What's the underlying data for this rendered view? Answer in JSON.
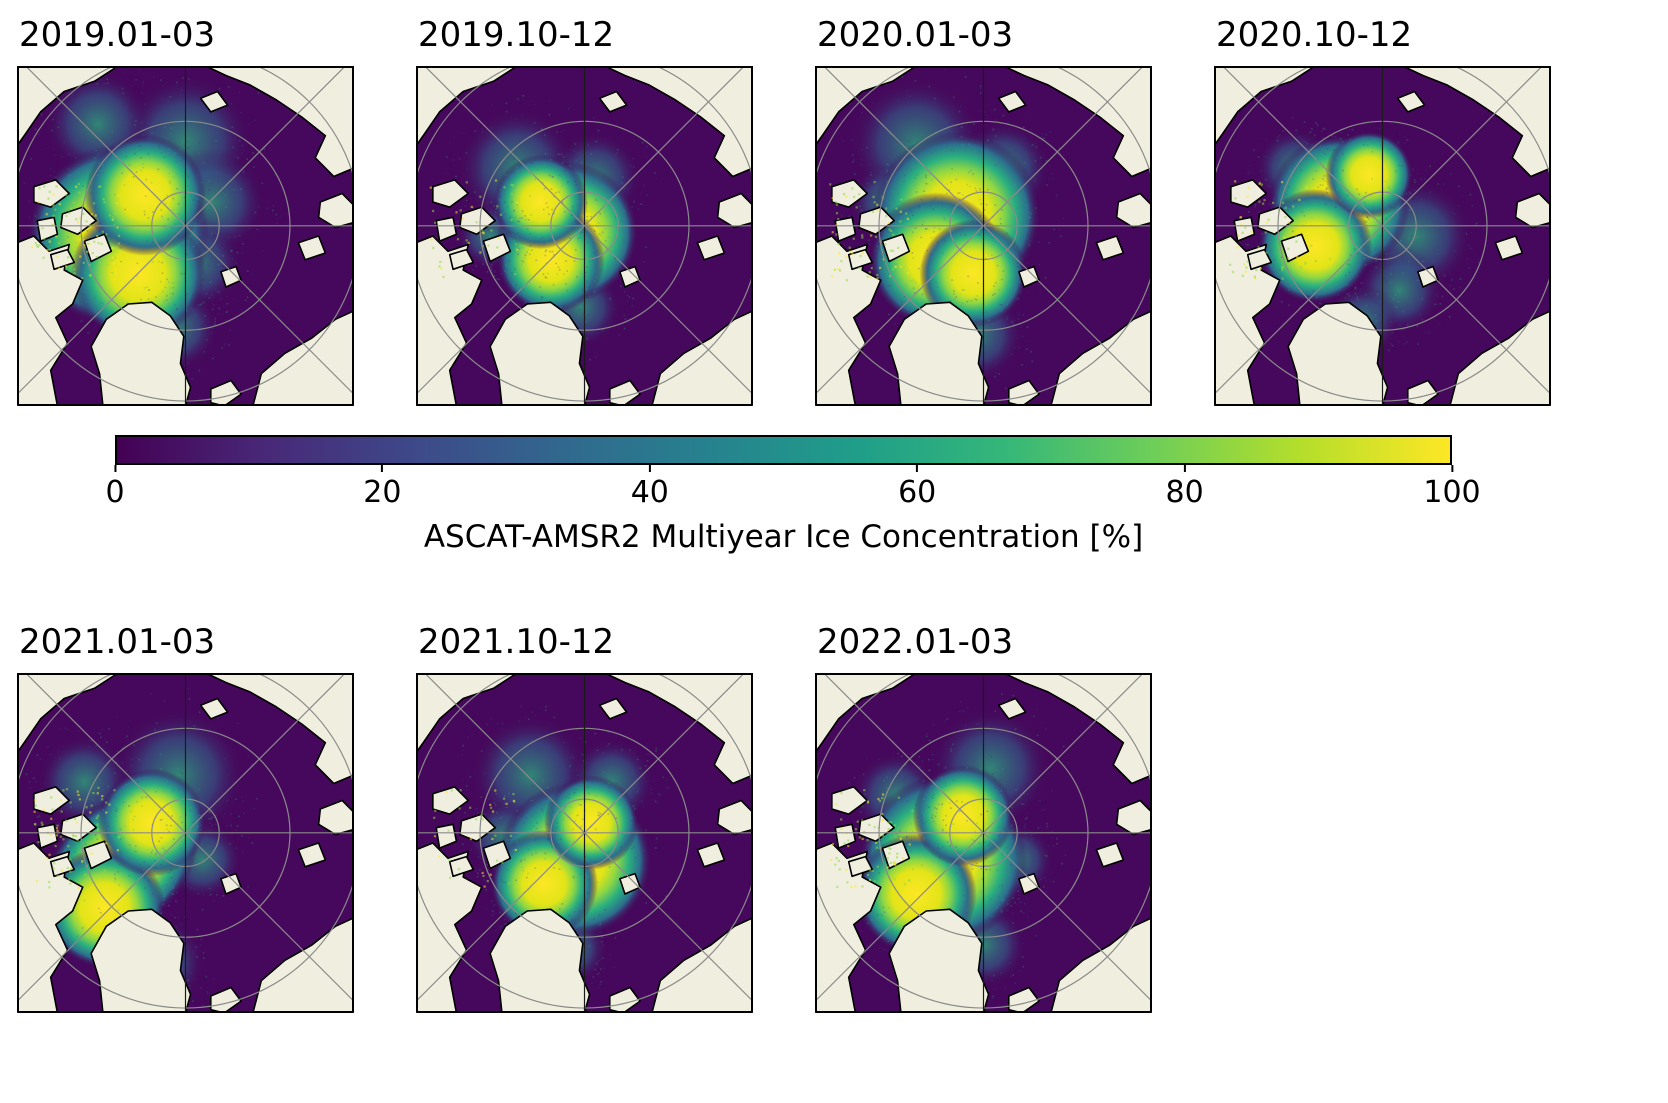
{
  "chart_data": {
    "type": "heatmap",
    "layout": "small-multiples of polar stereographic Arctic maps, 4 panels top row, 3 panels bottom row, shared horizontal colorbar between rows",
    "colorbar": {
      "label": "ASCAT-AMSR2 Multiyear Ice Concentration [%]",
      "ticks": [
        "0",
        "20",
        "40",
        "60",
        "80",
        "100"
      ],
      "range": [
        0,
        100
      ],
      "colormap": "viridis",
      "stops": [
        "#440154",
        "#482878",
        "#3e4989",
        "#31688e",
        "#26828e",
        "#1f9e89",
        "#35b779",
        "#6ece58",
        "#b5de2b",
        "#fde725"
      ]
    },
    "map_colors": {
      "ocean": "#46085c",
      "land": "#f0efdf",
      "coast": "#000000",
      "graticule": "#8a8a8a",
      "meridian": "#1a1a1a"
    },
    "panels": [
      {
        "title": "2019.01-03",
        "ice": {
          "cores": [
            {
              "x": 0.3,
              "y": 0.5,
              "r": 0.27
            },
            {
              "x": 0.36,
              "y": 0.61,
              "r": 0.2
            },
            {
              "x": 0.38,
              "y": 0.38,
              "r": 0.18
            }
          ],
          "fringes": [
            {
              "x": 0.5,
              "y": 0.22,
              "r": 0.2
            },
            {
              "x": 0.24,
              "y": 0.17,
              "r": 0.16
            },
            {
              "x": 0.58,
              "y": 0.4,
              "r": 0.16
            },
            {
              "x": 0.47,
              "y": 0.77,
              "r": 0.13
            },
            {
              "x": 0.53,
              "y": 0.58,
              "r": 0.14
            }
          ],
          "arch_speckle": 100
        }
      },
      {
        "title": "2019.10-12",
        "ice": {
          "cores": [
            {
              "x": 0.45,
              "y": 0.49,
              "r": 0.21
            },
            {
              "x": 0.4,
              "y": 0.57,
              "r": 0.16
            },
            {
              "x": 0.37,
              "y": 0.4,
              "r": 0.14
            }
          ],
          "fringes": [
            {
              "x": 0.3,
              "y": 0.3,
              "r": 0.18
            },
            {
              "x": 0.53,
              "y": 0.33,
              "r": 0.14
            },
            {
              "x": 0.49,
              "y": 0.71,
              "r": 0.12
            },
            {
              "x": 0.22,
              "y": 0.5,
              "r": 0.1
            }
          ],
          "arch_speckle": 40
        }
      },
      {
        "title": "2020.01-03",
        "ice": {
          "cores": [
            {
              "x": 0.42,
              "y": 0.44,
              "r": 0.25
            },
            {
              "x": 0.36,
              "y": 0.57,
              "r": 0.2
            },
            {
              "x": 0.47,
              "y": 0.61,
              "r": 0.16
            }
          ],
          "fringes": [
            {
              "x": 0.3,
              "y": 0.23,
              "r": 0.2
            },
            {
              "x": 0.56,
              "y": 0.3,
              "r": 0.14
            },
            {
              "x": 0.48,
              "y": 0.79,
              "r": 0.14
            },
            {
              "x": 0.22,
              "y": 0.4,
              "r": 0.12
            }
          ],
          "arch_speckle": 80
        }
      },
      {
        "title": "2020.10-12",
        "ice": {
          "cores": [
            {
              "x": 0.37,
              "y": 0.41,
              "r": 0.21
            },
            {
              "x": 0.3,
              "y": 0.53,
              "r": 0.17
            },
            {
              "x": 0.46,
              "y": 0.32,
              "r": 0.13
            }
          ],
          "fringes": [
            {
              "x": 0.6,
              "y": 0.5,
              "r": 0.17
            },
            {
              "x": 0.55,
              "y": 0.66,
              "r": 0.13
            },
            {
              "x": 0.44,
              "y": 0.75,
              "r": 0.11
            },
            {
              "x": 0.24,
              "y": 0.3,
              "r": 0.12
            }
          ],
          "arch_speckle": 60
        }
      },
      {
        "title": "2021.01-03",
        "ice": {
          "cores": [
            {
              "x": 0.31,
              "y": 0.56,
              "r": 0.25,
              "rot": -0.7,
              "sy": 0.75
            },
            {
              "x": 0.26,
              "y": 0.69,
              "r": 0.18
            },
            {
              "x": 0.4,
              "y": 0.44,
              "r": 0.16
            }
          ],
          "fringes": [
            {
              "x": 0.48,
              "y": 0.3,
              "r": 0.2
            },
            {
              "x": 0.2,
              "y": 0.32,
              "r": 0.14
            },
            {
              "x": 0.42,
              "y": 0.85,
              "r": 0.14
            },
            {
              "x": 0.55,
              "y": 0.55,
              "r": 0.12
            }
          ],
          "arch_speckle": 80
        }
      },
      {
        "title": "2021.10-12",
        "ice": {
          "cores": [
            {
              "x": 0.47,
              "y": 0.55,
              "r": 0.23
            },
            {
              "x": 0.38,
              "y": 0.62,
              "r": 0.16
            },
            {
              "x": 0.52,
              "y": 0.44,
              "r": 0.14
            }
          ],
          "fringes": [
            {
              "x": 0.34,
              "y": 0.3,
              "r": 0.18
            },
            {
              "x": 0.58,
              "y": 0.32,
              "r": 0.13
            },
            {
              "x": 0.46,
              "y": 0.81,
              "r": 0.11
            },
            {
              "x": 0.26,
              "y": 0.48,
              "r": 0.11
            }
          ],
          "arch_speckle": 40
        }
      },
      {
        "title": "2022.01-03",
        "ice": {
          "cores": [
            {
              "x": 0.38,
              "y": 0.55,
              "r": 0.25
            },
            {
              "x": 0.3,
              "y": 0.65,
              "r": 0.18
            },
            {
              "x": 0.44,
              "y": 0.42,
              "r": 0.15
            }
          ],
          "fringes": [
            {
              "x": 0.52,
              "y": 0.28,
              "r": 0.18
            },
            {
              "x": 0.24,
              "y": 0.36,
              "r": 0.13
            },
            {
              "x": 0.5,
              "y": 0.8,
              "r": 0.13
            },
            {
              "x": 0.6,
              "y": 0.55,
              "r": 0.11
            }
          ],
          "arch_speckle": 80
        }
      }
    ]
  }
}
